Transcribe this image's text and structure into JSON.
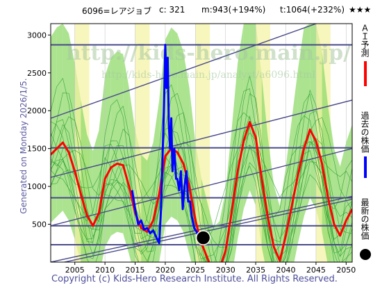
{
  "header": {
    "ticker": "6096=レアジョブ",
    "c_text": "c: 321",
    "m_text": "m:943(+194%)",
    "t_text": "t:1064(+232%)",
    "stars": "★★★"
  },
  "side_date": "Generated on Monday 2026/1/5.",
  "copyright": "Copyright (c) Kids-Hero Research Institute. All Rights Reserved.",
  "watermark": {
    "line1": "http://kids-hero.main.jp/",
    "line2": "http://kids-hero.main.jp/analyst/a6096.html"
  },
  "legend": {
    "ai": "ＡＩ予測",
    "past": "過去の株価",
    "latest": "最新の株価"
  },
  "colors": {
    "ai": "#ff0000",
    "past": "#0000ff",
    "latest": "#000000",
    "band_green": "#8fd96a",
    "band_yellow": "#f3f2a0",
    "lines": "#4a4a8a"
  },
  "chart_data": {
    "type": "line",
    "title": "",
    "xlim": [
      2001,
      2051
    ],
    "ylim": [
      0,
      3150
    ],
    "x_ticks": [
      2005,
      2010,
      2015,
      2020,
      2025,
      2030,
      2035,
      2040,
      2045,
      2050
    ],
    "y_ticks": [
      500,
      1000,
      1500,
      2000,
      2500,
      3000
    ],
    "horizontal_lines": [
      230,
      480,
      850,
      1510,
      2870
    ],
    "trend_lines": [
      {
        "from": [
          2001,
          480
        ],
        "to": [
          2051,
          1500
        ]
      },
      {
        "from": [
          2001,
          1120
        ],
        "to": [
          2051,
          2140
        ]
      },
      {
        "from": [
          2001,
          1900
        ],
        "to": [
          2051,
          3320
        ]
      },
      {
        "from": [
          2001,
          0
        ],
        "to": [
          2051,
          870
        ]
      },
      {
        "from": [
          2001,
          -40
        ],
        "to": [
          2051,
          830
        ]
      }
    ],
    "series": [
      {
        "name": "ＡＩ予測",
        "points": [
          [
            2001,
            1420
          ],
          [
            2002,
            1500
          ],
          [
            2003,
            1580
          ],
          [
            2004,
            1450
          ],
          [
            2005,
            1200
          ],
          [
            2006,
            900
          ],
          [
            2007,
            620
          ],
          [
            2008,
            480
          ],
          [
            2009,
            650
          ],
          [
            2010,
            1100
          ],
          [
            2011,
            1250
          ],
          [
            2012,
            1300
          ],
          [
            2013,
            1280
          ],
          [
            2014,
            1000
          ],
          [
            2015,
            650
          ],
          [
            2016,
            450
          ],
          [
            2017,
            400
          ],
          [
            2018,
            550
          ],
          [
            2019,
            900
          ],
          [
            2020,
            1400
          ],
          [
            2021,
            1500
          ],
          [
            2022,
            1450
          ],
          [
            2023,
            1300
          ],
          [
            2024,
            1000
          ],
          [
            2025,
            550
          ],
          [
            2026,
            250
          ],
          [
            2027,
            50
          ],
          [
            2028,
            -150
          ],
          [
            2029,
            -100
          ],
          [
            2030,
            150
          ],
          [
            2031,
            650
          ],
          [
            2032,
            1200
          ],
          [
            2033,
            1600
          ],
          [
            2034,
            1850
          ],
          [
            2035,
            1650
          ],
          [
            2036,
            1100
          ],
          [
            2037,
            600
          ],
          [
            2038,
            200
          ],
          [
            2039,
            20
          ],
          [
            2040,
            350
          ],
          [
            2041,
            750
          ],
          [
            2042,
            1150
          ],
          [
            2043,
            1500
          ],
          [
            2044,
            1750
          ],
          [
            2045,
            1600
          ],
          [
            2046,
            1300
          ],
          [
            2047,
            850
          ],
          [
            2048,
            500
          ],
          [
            2049,
            350
          ],
          [
            2050,
            550
          ],
          [
            2051,
            700
          ]
        ]
      },
      {
        "name": "過去の株価",
        "points": [
          [
            2014.5,
            950
          ],
          [
            2015,
            700
          ],
          [
            2015.5,
            500
          ],
          [
            2016,
            550
          ],
          [
            2016.5,
            430
          ],
          [
            2017,
            450
          ],
          [
            2017.5,
            380
          ],
          [
            2018,
            420
          ],
          [
            2018.5,
            330
          ],
          [
            2019,
            250
          ],
          [
            2019.3,
            700
          ],
          [
            2019.6,
            1500
          ],
          [
            2019.8,
            2100
          ],
          [
            2020,
            2870
          ],
          [
            2020.2,
            2300
          ],
          [
            2020.4,
            2700
          ],
          [
            2020.6,
            1800
          ],
          [
            2020.8,
            1500
          ],
          [
            2021,
            1900
          ],
          [
            2021.2,
            1200
          ],
          [
            2021.5,
            1500
          ],
          [
            2021.8,
            1100
          ],
          [
            2022,
            1100
          ],
          [
            2022.3,
            950
          ],
          [
            2022.6,
            1200
          ],
          [
            2022.9,
            700
          ],
          [
            2023.2,
            1000
          ],
          [
            2023.5,
            1200
          ],
          [
            2023.8,
            800
          ],
          [
            2024.1,
            800
          ],
          [
            2024.4,
            600
          ],
          [
            2024.8,
            450
          ],
          [
            2025.2,
            400
          ],
          [
            2025.6,
            330
          ]
        ]
      },
      {
        "name": "最新の株価",
        "points": [
          [
            2026.3,
            321
          ]
        ]
      }
    ]
  }
}
